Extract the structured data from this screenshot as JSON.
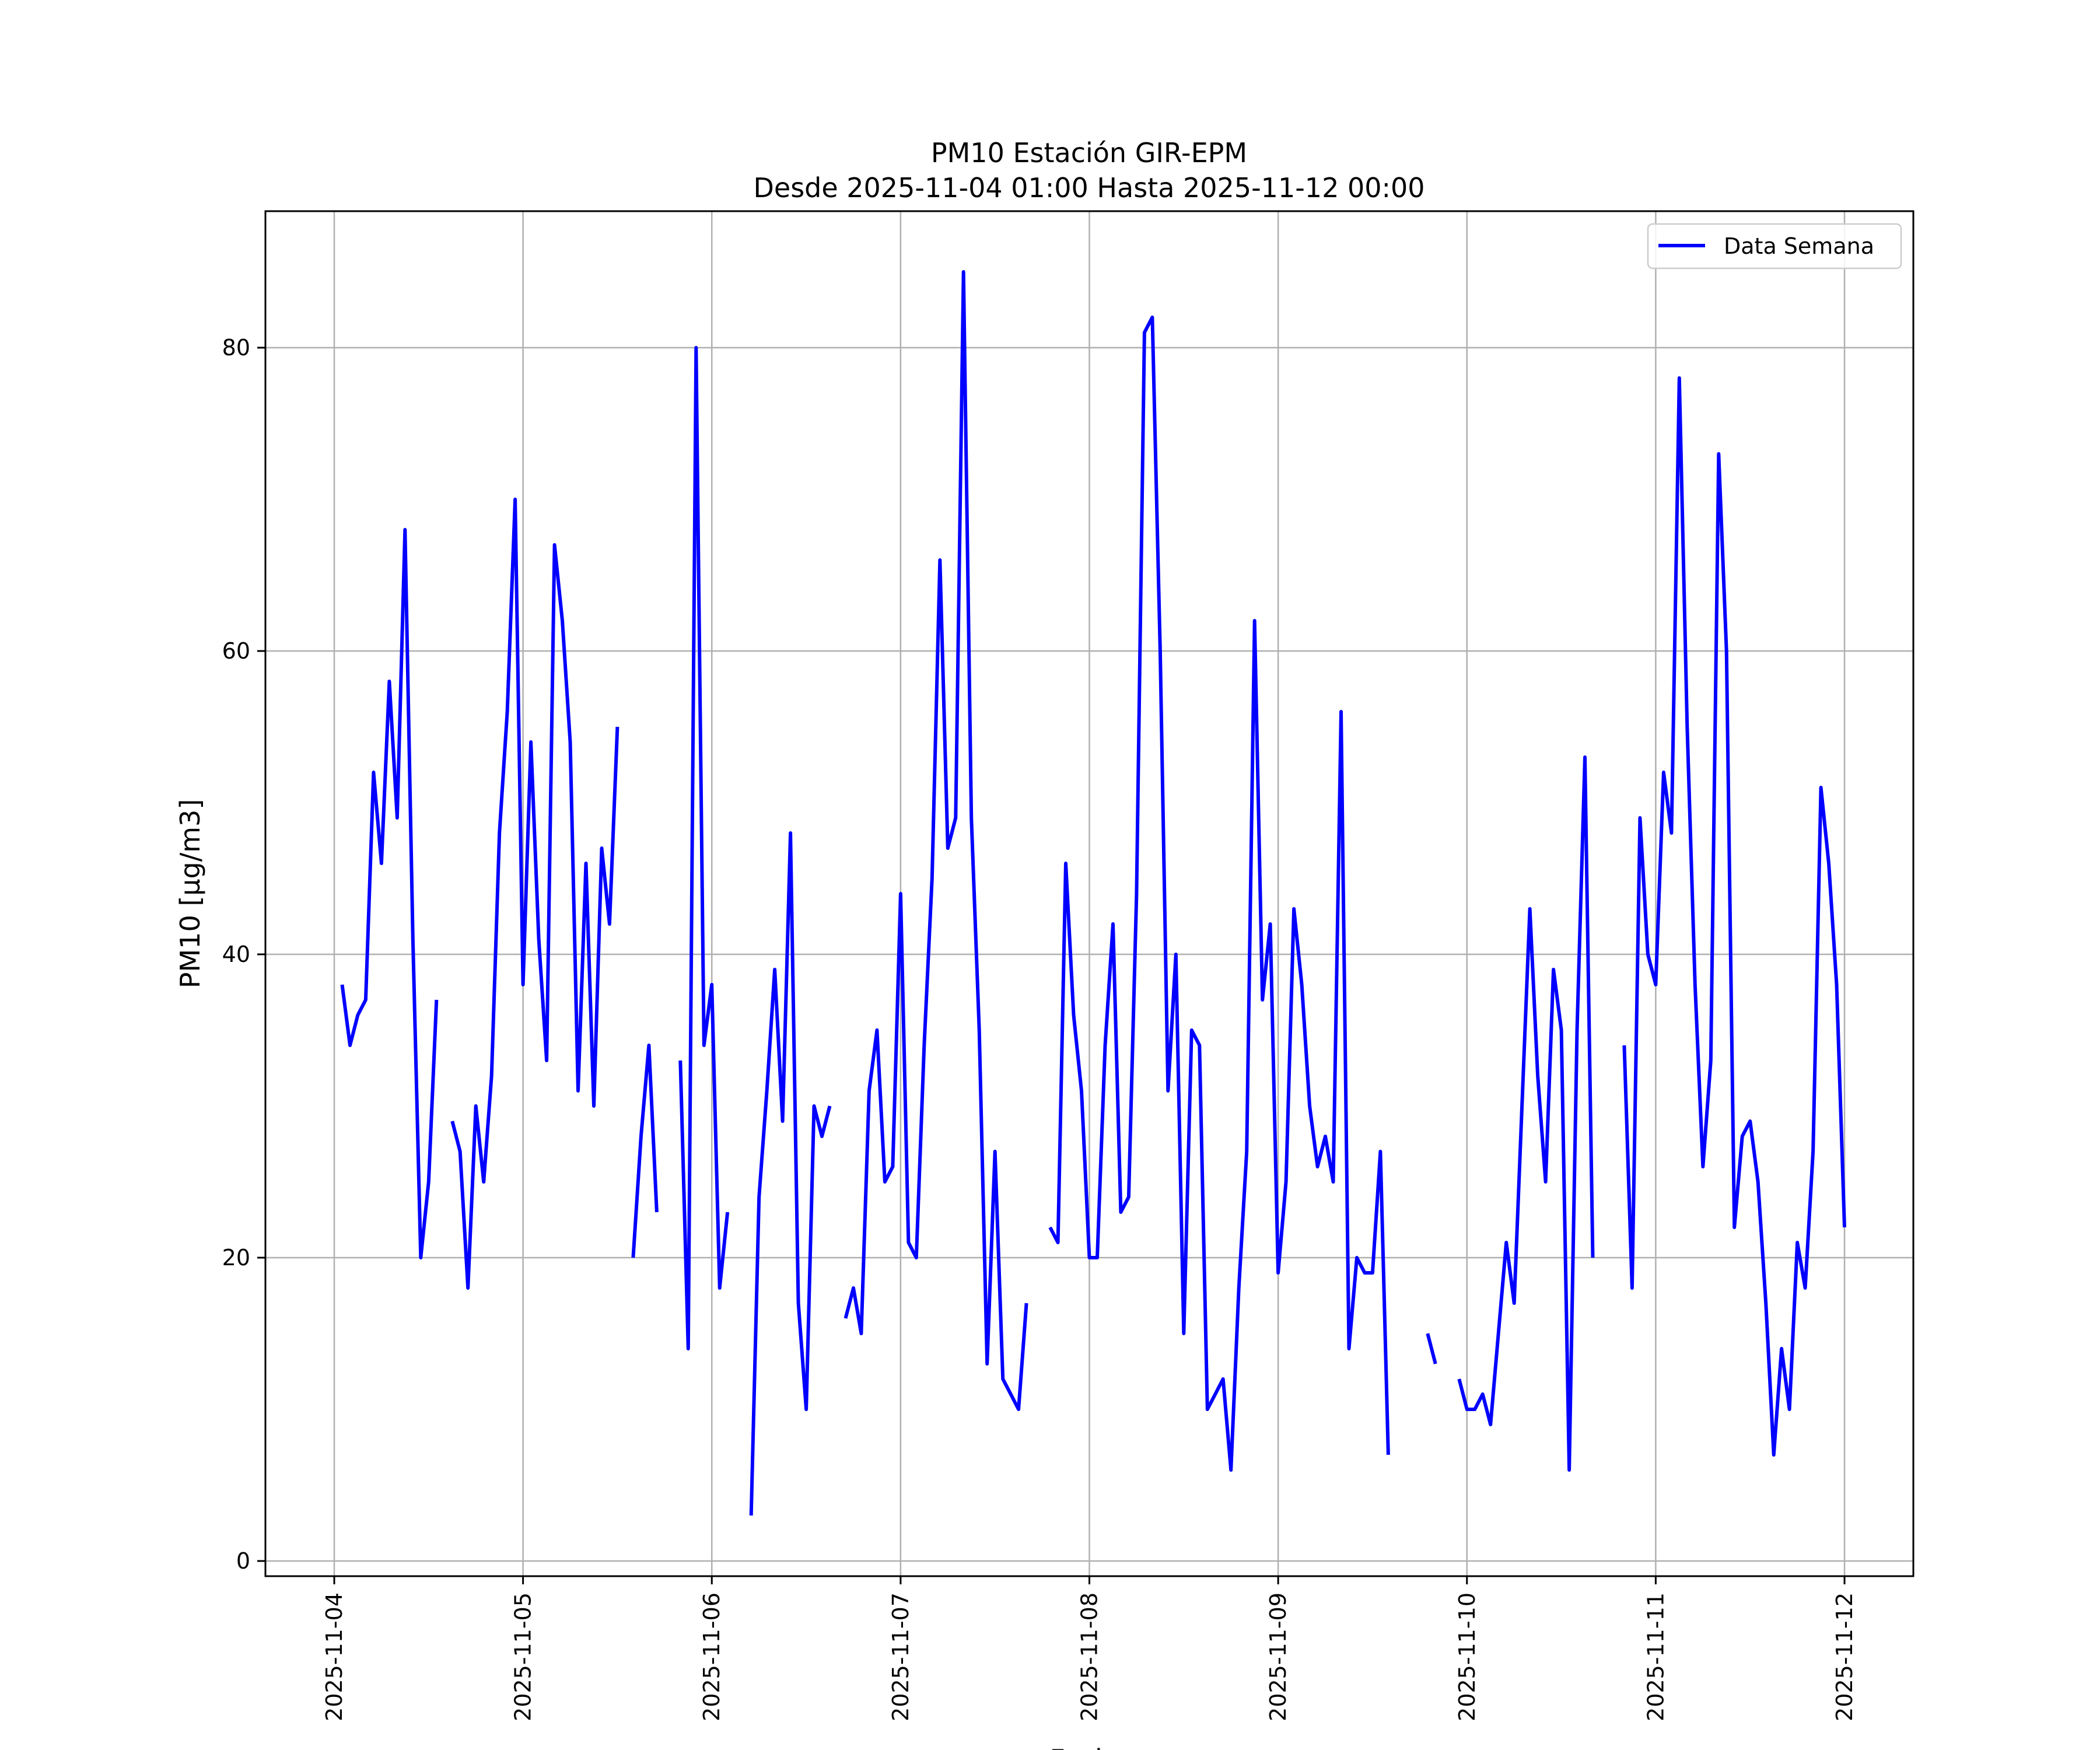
{
  "chart_data": {
    "type": "line",
    "title": [
      "PM10 Estación GIR-EPM",
      "Desde 2025-11-04 01:00 Hasta 2025-11-12 00:00"
    ],
    "xlabel": "Fecha",
    "ylabel": "PM10 [μg/m3]",
    "xlim": [
      "2025-11-03 15:15",
      "2025-11-12 08:45"
    ],
    "ylim": [
      -1,
      89
    ],
    "x_ticks": [
      "2025-11-04",
      "2025-11-05",
      "2025-11-06",
      "2025-11-07",
      "2025-11-08",
      "2025-11-09",
      "2025-11-10",
      "2025-11-11",
      "2025-11-12"
    ],
    "y_ticks": [
      0,
      20,
      40,
      60,
      80
    ],
    "grid": true,
    "legend": {
      "position": "top-right"
    },
    "series": [
      {
        "name": "Data Semana",
        "color": "#0000ff",
        "x": [
          "2025-11-04 01:00",
          "2025-11-04 02:00",
          "2025-11-04 03:00",
          "2025-11-04 04:00",
          "2025-11-04 05:00",
          "2025-11-04 06:00",
          "2025-11-04 07:00",
          "2025-11-04 08:00",
          "2025-11-04 09:00",
          "2025-11-04 10:00",
          "2025-11-04 11:00",
          "2025-11-04 12:00",
          "2025-11-04 13:00",
          "2025-11-04 15:00",
          "2025-11-04 16:00",
          "2025-11-04 17:00",
          "2025-11-04 18:00",
          "2025-11-04 19:00",
          "2025-11-04 20:00",
          "2025-11-04 21:00",
          "2025-11-04 22:00",
          "2025-11-04 23:00",
          "2025-11-05 00:00",
          "2025-11-05 01:00",
          "2025-11-05 02:00",
          "2025-11-05 03:00",
          "2025-11-05 04:00",
          "2025-11-05 05:00",
          "2025-11-05 06:00",
          "2025-11-05 07:00",
          "2025-11-05 08:00",
          "2025-11-05 09:00",
          "2025-11-05 10:00",
          "2025-11-05 11:00",
          "2025-11-05 12:00",
          "2025-11-05 14:00",
          "2025-11-05 15:00",
          "2025-11-05 16:00",
          "2025-11-05 17:00",
          "2025-11-05 20:00",
          "2025-11-05 21:00",
          "2025-11-05 22:00",
          "2025-11-05 23:00",
          "2025-11-06 00:00",
          "2025-11-06 01:00",
          "2025-11-06 02:00",
          "2025-11-06 05:00",
          "2025-11-06 06:00",
          "2025-11-06 07:00",
          "2025-11-06 08:00",
          "2025-11-06 09:00",
          "2025-11-06 10:00",
          "2025-11-06 11:00",
          "2025-11-06 12:00",
          "2025-11-06 13:00",
          "2025-11-06 14:00",
          "2025-11-06 15:00",
          "2025-11-06 17:00",
          "2025-11-06 18:00",
          "2025-11-06 19:00",
          "2025-11-06 20:00",
          "2025-11-06 21:00",
          "2025-11-06 22:00",
          "2025-11-06 23:00",
          "2025-11-07 00:00",
          "2025-11-07 01:00",
          "2025-11-07 02:00",
          "2025-11-07 03:00",
          "2025-11-07 04:00",
          "2025-11-07 05:00",
          "2025-11-07 06:00",
          "2025-11-07 07:00",
          "2025-11-07 08:00",
          "2025-11-07 09:00",
          "2025-11-07 10:00",
          "2025-11-07 11:00",
          "2025-11-07 12:00",
          "2025-11-07 13:00",
          "2025-11-07 14:00",
          "2025-11-07 15:00",
          "2025-11-07 16:00",
          "2025-11-07 19:00",
          "2025-11-07 20:00",
          "2025-11-07 21:00",
          "2025-11-07 22:00",
          "2025-11-07 23:00",
          "2025-11-08 00:00",
          "2025-11-08 01:00",
          "2025-11-08 02:00",
          "2025-11-08 03:00",
          "2025-11-08 04:00",
          "2025-11-08 05:00",
          "2025-11-08 06:00",
          "2025-11-08 07:00",
          "2025-11-08 08:00",
          "2025-11-08 09:00",
          "2025-11-08 10:00",
          "2025-11-08 11:00",
          "2025-11-08 12:00",
          "2025-11-08 13:00",
          "2025-11-08 14:00",
          "2025-11-08 15:00",
          "2025-11-08 16:00",
          "2025-11-08 17:00",
          "2025-11-08 18:00",
          "2025-11-08 19:00",
          "2025-11-08 20:00",
          "2025-11-08 21:00",
          "2025-11-08 22:00",
          "2025-11-08 23:00",
          "2025-11-09 00:00",
          "2025-11-09 01:00",
          "2025-11-09 02:00",
          "2025-11-09 03:00",
          "2025-11-09 04:00",
          "2025-11-09 05:00",
          "2025-11-09 06:00",
          "2025-11-09 07:00",
          "2025-11-09 08:00",
          "2025-11-09 09:00",
          "2025-11-09 10:00",
          "2025-11-09 11:00",
          "2025-11-09 12:00",
          "2025-11-09 13:00",
          "2025-11-09 14:00",
          "2025-11-09 19:00",
          "2025-11-09 20:00",
          "2025-11-09 23:00",
          "2025-11-10 00:00",
          "2025-11-10 01:00",
          "2025-11-10 02:00",
          "2025-11-10 03:00",
          "2025-11-10 04:00",
          "2025-11-10 05:00",
          "2025-11-10 06:00",
          "2025-11-10 07:00",
          "2025-11-10 08:00",
          "2025-11-10 09:00",
          "2025-11-10 10:00",
          "2025-11-10 11:00",
          "2025-11-10 12:00",
          "2025-11-10 13:00",
          "2025-11-10 14:00",
          "2025-11-10 15:00",
          "2025-11-10 16:00",
          "2025-11-10 20:00",
          "2025-11-10 21:00",
          "2025-11-10 22:00",
          "2025-11-10 23:00",
          "2025-11-11 00:00",
          "2025-11-11 01:00",
          "2025-11-11 02:00",
          "2025-11-11 03:00",
          "2025-11-11 04:00",
          "2025-11-11 05:00",
          "2025-11-11 06:00",
          "2025-11-11 07:00",
          "2025-11-11 08:00",
          "2025-11-11 09:00",
          "2025-11-11 10:00",
          "2025-11-11 11:00",
          "2025-11-11 12:00",
          "2025-11-11 13:00",
          "2025-11-11 14:00",
          "2025-11-11 15:00",
          "2025-11-11 16:00",
          "2025-11-11 17:00",
          "2025-11-11 18:00",
          "2025-11-11 19:00",
          "2025-11-11 20:00",
          "2025-11-11 21:00",
          "2025-11-11 22:00",
          "2025-11-11 23:00",
          "2025-11-12 00:00"
        ],
        "values": [
          38,
          34,
          36,
          37,
          52,
          46,
          58,
          49,
          68,
          41,
          20,
          25,
          37,
          29,
          27,
          18,
          30,
          25,
          32,
          48,
          56,
          70,
          38,
          54,
          41,
          33,
          67,
          62,
          54,
          31,
          46,
          30,
          47,
          42,
          55,
          20,
          28,
          34,
          23,
          33,
          14,
          80,
          34,
          38,
          18,
          23,
          3,
          24,
          31,
          39,
          29,
          48,
          17,
          10,
          30,
          28,
          30,
          16,
          18,
          15,
          31,
          35,
          25,
          26,
          44,
          21,
          20,
          34,
          45,
          66,
          47,
          49,
          85,
          49,
          35,
          13,
          27,
          12,
          11,
          10,
          17,
          22,
          21,
          46,
          36,
          31,
          20,
          20,
          34,
          42,
          23,
          24,
          44,
          81,
          82,
          60,
          31,
          40,
          15,
          35,
          34,
          10,
          11,
          12,
          6,
          18,
          27,
          62,
          37,
          42,
          19,
          25,
          43,
          38,
          30,
          26,
          28,
          25,
          56,
          14,
          20,
          19,
          19,
          27,
          7,
          15,
          13,
          12,
          10,
          10,
          11,
          9,
          15,
          21,
          17,
          30,
          43,
          32,
          25,
          39,
          35,
          6,
          35,
          53,
          20,
          34,
          18,
          49,
          40,
          38,
          52,
          48,
          78,
          55,
          38,
          26,
          33,
          73,
          60,
          22,
          28,
          29,
          25,
          17,
          7,
          14,
          10,
          21,
          18,
          27,
          51,
          46,
          38,
          22
        ]
      }
    ]
  }
}
